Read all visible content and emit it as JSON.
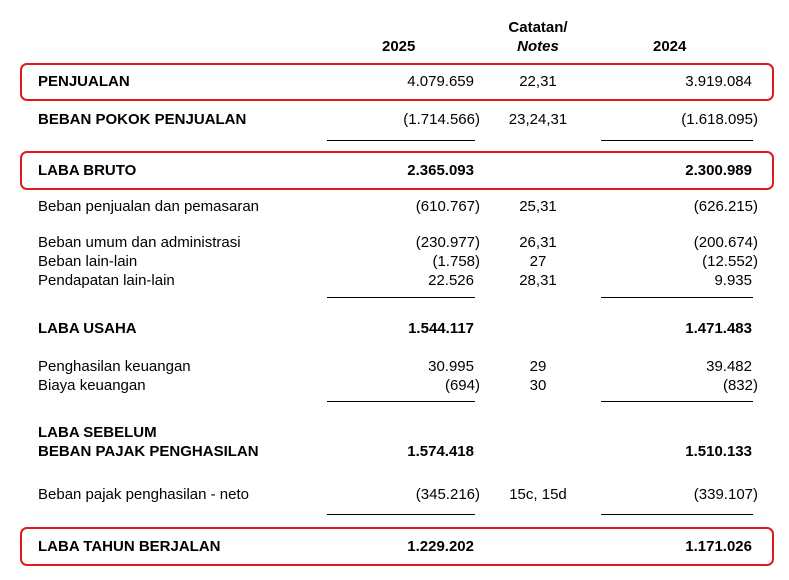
{
  "header": {
    "col_2025": "2025",
    "notes_line1": "Catatan/",
    "notes_line2": "Notes",
    "col_2024": "2024"
  },
  "rows": {
    "penjualan": {
      "label": "PENJUALAN",
      "v2025": "4.079.659",
      "note": "22,31",
      "v2024": "3.919.084"
    },
    "beban_pokok": {
      "label": "BEBAN POKOK PENJUALAN",
      "v2025": "(1.714.566)",
      "note": "23,24,31",
      "v2024": "(1.618.095)"
    },
    "laba_bruto": {
      "label": "LABA BRUTO",
      "v2025": "2.365.093",
      "note": "",
      "v2024": "2.300.989"
    },
    "beban_penjualan": {
      "label": "Beban penjualan dan pemasaran",
      "v2025": "(610.767)",
      "note": "25,31",
      "v2024": "(626.215)"
    },
    "beban_umum": {
      "label": "Beban umum dan administrasi",
      "v2025": "(230.977)",
      "note": "26,31",
      "v2024": "(200.674)"
    },
    "beban_lain": {
      "label": "Beban lain-lain",
      "v2025": "(1.758)",
      "note": "27",
      "v2024": "(12.552)"
    },
    "pendapatan_lain": {
      "label": "Pendapatan lain-lain",
      "v2025": "22.526",
      "note": "28,31",
      "v2024": "9.935"
    },
    "laba_usaha": {
      "label": "LABA USAHA",
      "v2025": "1.544.117",
      "note": "",
      "v2024": "1.471.483"
    },
    "penghasilan_keuangan": {
      "label": "Penghasilan keuangan",
      "v2025": "30.995",
      "note": "29",
      "v2024": "39.482"
    },
    "biaya_keuangan": {
      "label": "Biaya keuangan",
      "v2025": "(694)",
      "note": "30",
      "v2024": "(832)"
    },
    "laba_sebelum": {
      "label_line1": "LABA SEBELUM",
      "label_line2": "BEBAN PAJAK PENGHASILAN",
      "v2025": "1.574.418",
      "note": "",
      "v2024": "1.510.133"
    },
    "beban_pajak": {
      "label": "Beban pajak penghasilan - neto",
      "v2025": "(345.216)",
      "note": "15c, 15d",
      "v2024": "(339.107)"
    },
    "laba_tahun": {
      "label": "LABA TAHUN BERJALAN",
      "v2025": "1.229.202",
      "note": "",
      "v2024": "1.171.026"
    }
  },
  "colors": {
    "highlight": "#e0191f"
  }
}
